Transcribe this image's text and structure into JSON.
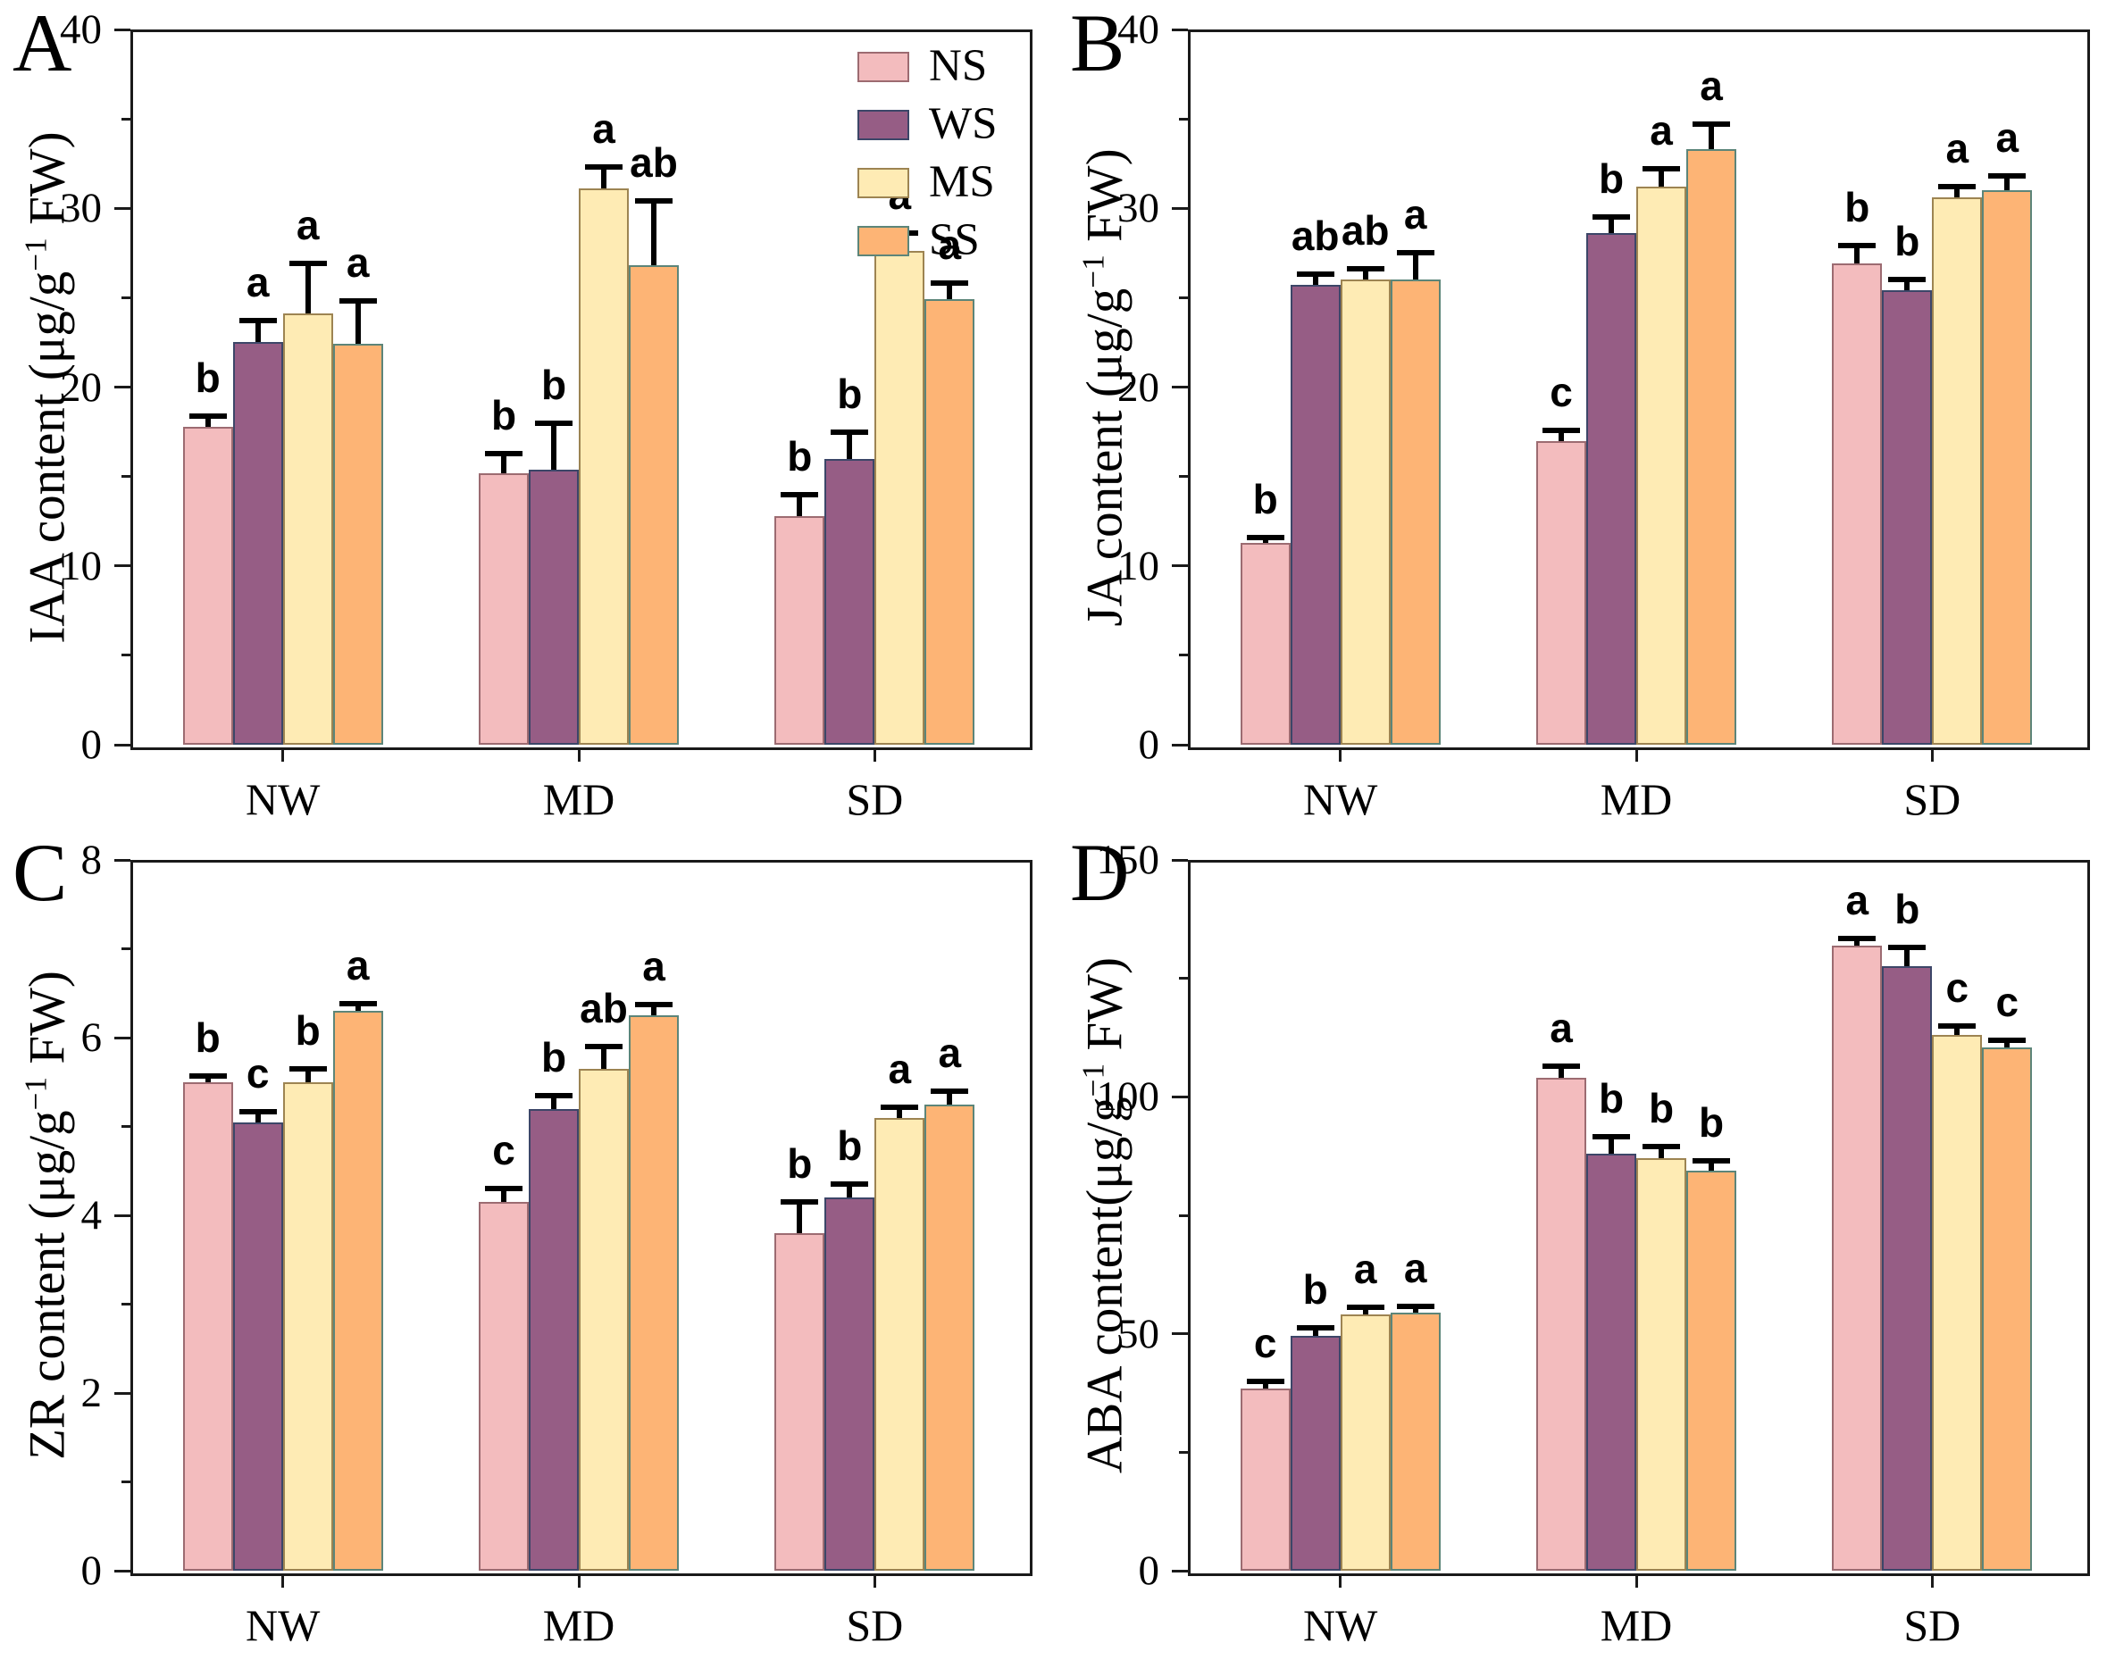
{
  "figure": {
    "background": "#ffffff",
    "categories": [
      "NW",
      "MD",
      "SD"
    ]
  },
  "legend": {
    "position": "top-right-panel-A",
    "items": [
      {
        "label": "NS",
        "fill": "#F3BCBE",
        "stroke": "#9c6b71"
      },
      {
        "label": "WS",
        "fill": "#965D85",
        "stroke": "#3c4668"
      },
      {
        "label": "MS",
        "fill": "#FEEBB4",
        "stroke": "#9d8452"
      },
      {
        "label": "SS",
        "fill": "#FDB475",
        "stroke": "#5c8579"
      }
    ]
  },
  "chart_data": [
    {
      "type": "bar",
      "panel": "A",
      "ylabel_prefix": "IAA content (μg/g",
      "ylabel_sup": "−1",
      "ylabel_suffix": " FW)",
      "ylim": [
        0,
        40
      ],
      "ytick_major": 10,
      "ytick_minor": 5,
      "grid": false,
      "categories": [
        "NW",
        "MD",
        "SD"
      ],
      "series": [
        {
          "name": "NS",
          "values": [
            17.8,
            15.2,
            12.8
          ],
          "errors": [
            0.6,
            1.1,
            1.2
          ],
          "letters": [
            "b",
            "b",
            "b"
          ]
        },
        {
          "name": "WS",
          "values": [
            22.5,
            15.4,
            16.0
          ],
          "errors": [
            1.2,
            2.6,
            1.5
          ],
          "letters": [
            "a",
            "b",
            "b"
          ]
        },
        {
          "name": "MS",
          "values": [
            24.1,
            31.1,
            27.6
          ],
          "errors": [
            2.8,
            1.2,
            1.0
          ],
          "letters": [
            "a",
            "a",
            "a"
          ]
        },
        {
          "name": "SS",
          "values": [
            22.4,
            26.8,
            24.9
          ],
          "errors": [
            2.4,
            3.6,
            0.9
          ],
          "letters": [
            "a",
            "ab",
            "a"
          ]
        }
      ]
    },
    {
      "type": "bar",
      "panel": "B",
      "ylabel_prefix": "JA content (μg/g",
      "ylabel_sup": "−1",
      "ylabel_suffix": " FW)",
      "ylim": [
        0,
        40
      ],
      "ytick_major": 10,
      "ytick_minor": 5,
      "grid": false,
      "categories": [
        "NW",
        "MD",
        "SD"
      ],
      "series": [
        {
          "name": "NS",
          "values": [
            11.3,
            17.0,
            26.9
          ],
          "errors": [
            0.3,
            0.6,
            1.0
          ],
          "letters": [
            "b",
            "c",
            "b"
          ]
        },
        {
          "name": "WS",
          "values": [
            25.7,
            28.6,
            25.4
          ],
          "errors": [
            0.6,
            0.9,
            0.6
          ],
          "letters": [
            "ab",
            "b",
            "b"
          ]
        },
        {
          "name": "MS",
          "values": [
            26.0,
            31.2,
            30.6
          ],
          "errors": [
            0.6,
            1.0,
            0.6
          ],
          "letters": [
            "ab",
            "a",
            "a"
          ]
        },
        {
          "name": "SS",
          "values": [
            26.0,
            33.3,
            31.0
          ],
          "errors": [
            1.5,
            1.4,
            0.8
          ],
          "letters": [
            "a",
            "a",
            "a"
          ]
        }
      ]
    },
    {
      "type": "bar",
      "panel": "C",
      "ylabel_prefix": "ZR content (μg/g",
      "ylabel_sup": "−1",
      "ylabel_suffix": " FW)",
      "ylim": [
        0,
        8
      ],
      "ytick_major": 2,
      "ytick_minor": 1,
      "grid": false,
      "categories": [
        "NW",
        "MD",
        "SD"
      ],
      "series": [
        {
          "name": "NS",
          "values": [
            5.5,
            4.15,
            3.8
          ],
          "errors": [
            0.07,
            0.15,
            0.35
          ],
          "letters": [
            "b",
            "c",
            "b"
          ]
        },
        {
          "name": "WS",
          "values": [
            5.05,
            5.2,
            4.2
          ],
          "errors": [
            0.12,
            0.15,
            0.15
          ],
          "letters": [
            "c",
            "b",
            "b"
          ]
        },
        {
          "name": "MS",
          "values": [
            5.5,
            5.65,
            5.1
          ],
          "errors": [
            0.15,
            0.25,
            0.12
          ],
          "letters": [
            "b",
            "ab",
            "a"
          ]
        },
        {
          "name": "SS",
          "values": [
            6.3,
            6.25,
            5.25
          ],
          "errors": [
            0.08,
            0.12,
            0.15
          ],
          "letters": [
            "a",
            "a",
            "a"
          ]
        }
      ]
    },
    {
      "type": "bar",
      "panel": "D",
      "ylabel_prefix": "ABA content(μg/g",
      "ylabel_sup": "−1",
      "ylabel_suffix": " FW)",
      "ylim": [
        0,
        150
      ],
      "ytick_major": 50,
      "ytick_minor": 25,
      "grid": false,
      "categories": [
        "NW",
        "MD",
        "SD"
      ],
      "series": [
        {
          "name": "NS",
          "values": [
            38.5,
            104.0,
            132.0
          ],
          "errors": [
            1.5,
            2.5,
            1.5
          ],
          "letters": [
            "c",
            "a",
            "a"
          ]
        },
        {
          "name": "WS",
          "values": [
            49.5,
            88.0,
            127.5
          ],
          "errors": [
            1.8,
            3.5,
            4.0
          ],
          "letters": [
            "b",
            "b",
            "b"
          ]
        },
        {
          "name": "MS",
          "values": [
            54.0,
            87.0,
            113.0
          ],
          "errors": [
            1.5,
            2.5,
            2.0
          ],
          "letters": [
            "a",
            "b",
            "c"
          ]
        },
        {
          "name": "SS",
          "values": [
            54.5,
            84.5,
            110.5
          ],
          "errors": [
            1.2,
            2.0,
            1.5
          ],
          "letters": [
            "a",
            "b",
            "c"
          ]
        }
      ]
    }
  ]
}
